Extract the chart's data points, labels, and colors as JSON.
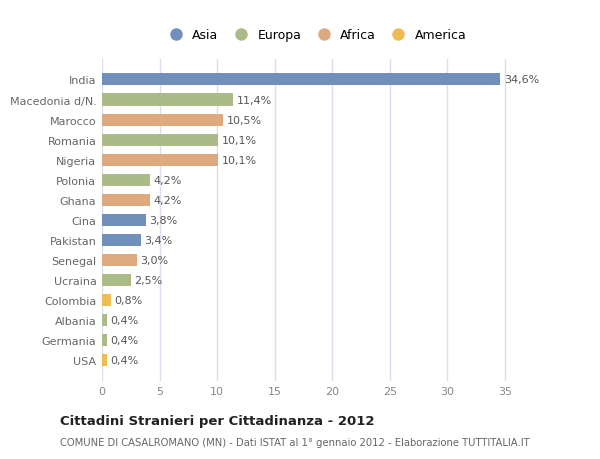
{
  "categories": [
    "India",
    "Macedonia d/N.",
    "Marocco",
    "Romania",
    "Nigeria",
    "Polonia",
    "Ghana",
    "Cina",
    "Pakistan",
    "Senegal",
    "Ucraina",
    "Colombia",
    "Albania",
    "Germania",
    "USA"
  ],
  "values": [
    34.6,
    11.4,
    10.5,
    10.1,
    10.1,
    4.2,
    4.2,
    3.8,
    3.4,
    3.0,
    2.5,
    0.8,
    0.4,
    0.4,
    0.4
  ],
  "labels": [
    "34,6%",
    "11,4%",
    "10,5%",
    "10,1%",
    "10,1%",
    "4,2%",
    "4,2%",
    "3,8%",
    "3,4%",
    "3,0%",
    "2,5%",
    "0,8%",
    "0,4%",
    "0,4%",
    "0,4%"
  ],
  "colors": [
    "#7090bb",
    "#aabb88",
    "#ddaa80",
    "#aabb88",
    "#ddaa80",
    "#aabb88",
    "#ddaa80",
    "#7090bb",
    "#7090bb",
    "#ddaa80",
    "#aabb88",
    "#eebb55",
    "#aabb88",
    "#aabb88",
    "#eebb55"
  ],
  "continent_colors": {
    "Asia": "#7090bb",
    "Europa": "#aabb88",
    "Africa": "#ddaa80",
    "America": "#eebb55"
  },
  "title": "Cittadini Stranieri per Cittadinanza - 2012",
  "subtitle": "COMUNE DI CASALROMANO (MN) - Dati ISTAT al 1° gennaio 2012 - Elaborazione TUTTITALIA.IT",
  "xlim": [
    0,
    37
  ],
  "background_color": "#ffffff",
  "plot_bg_color": "#ffffff",
  "grid_color": "#ddddee",
  "bar_height": 0.6,
  "label_fontsize": 8,
  "tick_fontsize": 8,
  "legend_fontsize": 9
}
